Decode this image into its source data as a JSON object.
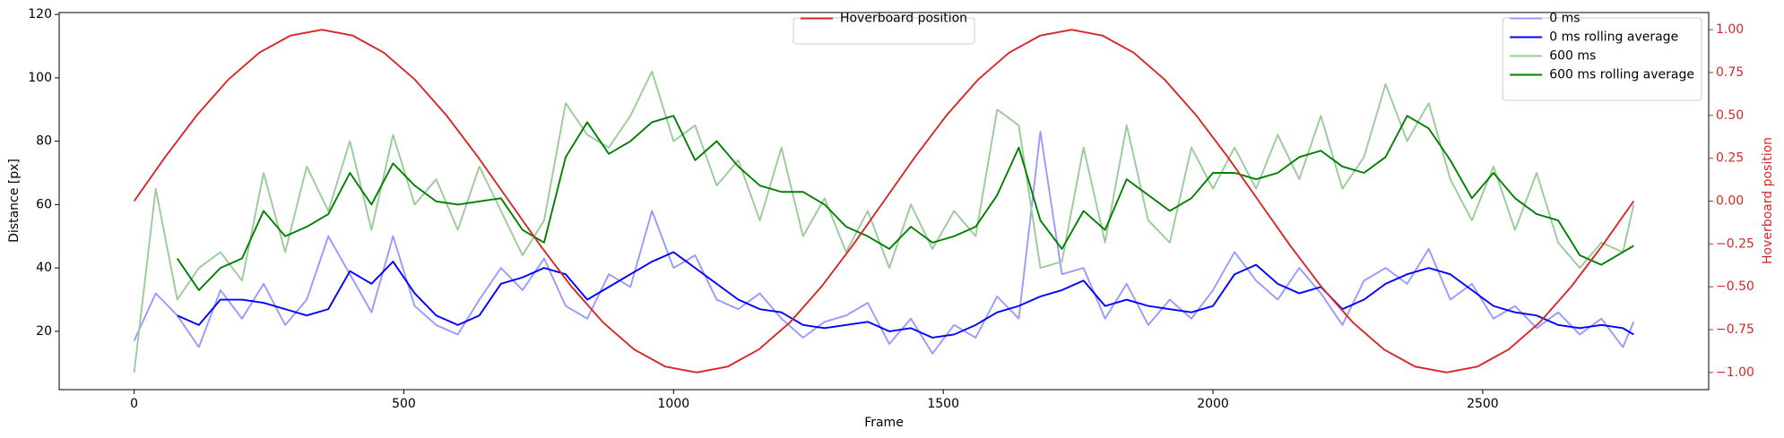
{
  "chart_data": {
    "type": "line",
    "xlabel": "Frame",
    "ylabel": "Distance [px]",
    "y2label": "Hoverboard position",
    "xlim": [
      -139,
      2919
    ],
    "ylim": [
      1.6,
      120.6
    ],
    "y2lim": [
      -1.1,
      1.1
    ],
    "xticks": [
      0,
      500,
      1000,
      1500,
      2000,
      2500
    ],
    "yticks": [
      20,
      40,
      60,
      80,
      100,
      120
    ],
    "y2ticks": [
      {
        "value": -1,
        "label": "−1.00"
      },
      {
        "value": -0.75,
        "label": "−0.75"
      },
      {
        "value": -0.5,
        "label": "−0.50"
      },
      {
        "value": -0.25,
        "label": "−0.25"
      },
      {
        "value": 0,
        "label": "0.00"
      },
      {
        "value": 0.25,
        "label": "0.25"
      },
      {
        "value": 0.5,
        "label": "0.50"
      },
      {
        "value": 0.75,
        "label": "0.75"
      },
      {
        "value": 1,
        "label": "1.00"
      }
    ],
    "y2color": "#d62728",
    "legend": "upper right",
    "y2legend": "upper center",
    "x": [
      0,
      40,
      80,
      120,
      160,
      200,
      240,
      280,
      320,
      360,
      400,
      440,
      480,
      520,
      560,
      600,
      640,
      680,
      720,
      760,
      800,
      840,
      880,
      920,
      960,
      1000,
      1040,
      1080,
      1120,
      1160,
      1200,
      1240,
      1280,
      1320,
      1360,
      1400,
      1440,
      1480,
      1520,
      1560,
      1600,
      1640,
      1680,
      1720,
      1760,
      1800,
      1840,
      1880,
      1920,
      1960,
      2000,
      2040,
      2080,
      2120,
      2160,
      2200,
      2240,
      2280,
      2320,
      2360,
      2400,
      2440,
      2480,
      2520,
      2560,
      2600,
      2640,
      2680,
      2720,
      2760,
      2780
    ],
    "series": [
      {
        "name": "0 ms",
        "color": "#9999ff",
        "values": [
          17,
          32,
          25,
          15,
          33,
          24,
          35,
          22,
          30,
          50,
          38,
          26,
          50,
          28,
          22,
          19,
          30,
          40,
          33,
          43,
          28,
          24,
          38,
          34,
          58,
          40,
          44,
          30,
          27,
          32,
          24,
          18,
          23,
          25,
          29,
          16,
          24,
          13,
          22,
          18,
          31,
          24,
          83,
          38,
          40,
          24,
          35,
          22,
          30,
          24,
          33,
          45,
          36,
          30,
          40,
          32,
          22,
          36,
          40,
          35,
          46,
          30,
          35,
          24,
          28,
          21,
          26,
          19,
          24,
          15,
          23
        ]
      },
      {
        "name": "0 ms rolling average",
        "color": "#0000ff",
        "values": [
          null,
          null,
          25,
          22,
          30,
          30,
          29,
          27,
          25,
          27,
          39,
          35,
          42,
          32,
          25,
          22,
          25,
          35,
          37,
          40,
          38,
          30,
          34,
          38,
          42,
          45,
          40,
          35,
          30,
          27,
          26,
          22,
          21,
          22,
          23,
          20,
          21,
          18,
          19,
          22,
          26,
          28,
          31,
          33,
          36,
          28,
          30,
          28,
          27,
          26,
          28,
          38,
          41,
          35,
          32,
          34,
          27,
          30,
          35,
          38,
          40,
          38,
          33,
          28,
          26,
          25,
          22,
          21,
          22,
          21,
          19
        ]
      },
      {
        "name": "600 ms",
        "color": "#99cc99",
        "values": [
          7,
          65,
          30,
          40,
          45,
          36,
          70,
          45,
          72,
          58,
          80,
          52,
          82,
          60,
          68,
          52,
          72,
          58,
          44,
          55,
          92,
          82,
          78,
          88,
          102,
          80,
          85,
          66,
          74,
          55,
          78,
          50,
          62,
          45,
          58,
          40,
          60,
          46,
          58,
          50,
          90,
          85,
          40,
          42,
          78,
          48,
          85,
          55,
          48,
          78,
          65,
          78,
          65,
          82,
          68,
          88,
          65,
          75,
          98,
          80,
          92,
          68,
          55,
          72,
          52,
          70,
          48,
          40,
          48,
          45,
          60
        ]
      },
      {
        "name": "600 ms rolling average",
        "color": "#008000",
        "values": [
          null,
          null,
          43,
          33,
          40,
          43,
          58,
          50,
          53,
          57,
          70,
          60,
          73,
          66,
          61,
          60,
          61,
          62,
          52,
          48,
          75,
          86,
          76,
          80,
          86,
          88,
          74,
          80,
          72,
          66,
          64,
          64,
          60,
          53,
          50,
          46,
          53,
          48,
          50,
          53,
          63,
          78,
          55,
          46,
          58,
          52,
          68,
          63,
          58,
          62,
          70,
          70,
          68,
          70,
          75,
          77,
          72,
          70,
          75,
          88,
          84,
          74,
          62,
          70,
          62,
          57,
          55,
          44,
          41,
          45,
          47
        ]
      },
      {
        "name": "Hoverboard position",
        "color": "#d62728",
        "axis": "y2",
        "x": [
          0,
          58,
          116,
          174,
          232,
          290,
          348,
          405,
          463,
          521,
          579,
          637,
          695,
          753,
          811,
          869,
          927,
          985,
          1043,
          1100,
          1158,
          1216,
          1274,
          1332,
          1390,
          1448,
          1506,
          1564,
          1622,
          1680,
          1738,
          1795,
          1853,
          1911,
          1969,
          2027,
          2085,
          2143,
          2201,
          2259,
          2317,
          2375,
          2433,
          2490,
          2548,
          2606,
          2664,
          2722,
          2780
        ],
        "values": [
          0,
          0.259,
          0.5,
          0.707,
          0.866,
          0.966,
          1,
          0.966,
          0.866,
          0.707,
          0.5,
          0.259,
          0,
          -0.259,
          -0.5,
          -0.707,
          -0.866,
          -0.966,
          -1,
          -0.966,
          -0.866,
          -0.707,
          -0.5,
          -0.259,
          0,
          0.259,
          0.5,
          0.707,
          0.866,
          0.966,
          1,
          0.966,
          0.866,
          0.707,
          0.5,
          0.259,
          0,
          -0.259,
          -0.5,
          -0.707,
          -0.866,
          -0.966,
          -1,
          -0.966,
          -0.866,
          -0.707,
          -0.5,
          -0.259,
          0
        ]
      }
    ]
  }
}
